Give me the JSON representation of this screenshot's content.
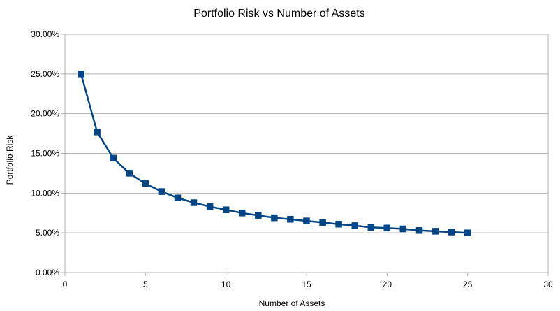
{
  "chart_data": {
    "type": "line",
    "title": "Portfolio Risk vs Number of Assets",
    "xlabel": "Number of Assets",
    "ylabel": "Portfolio Risk",
    "xlim": [
      0,
      30
    ],
    "ylim": [
      0,
      0.3
    ],
    "x_ticks": [
      0,
      5,
      10,
      15,
      20,
      25,
      30
    ],
    "x_tick_labels": [
      "0",
      "5",
      "10",
      "15",
      "20",
      "25",
      "30"
    ],
    "y_ticks": [
      0,
      0.05,
      0.1,
      0.15,
      0.2,
      0.25,
      0.3
    ],
    "y_tick_labels": [
      "0.00%",
      "5.00%",
      "10.00%",
      "15.00%",
      "20.00%",
      "25.00%",
      "30.00%"
    ],
    "grid": "horizontal",
    "legend": "none",
    "marker": "square",
    "series": [
      {
        "color": "#004586",
        "x": [
          1,
          2,
          3,
          4,
          5,
          6,
          7,
          8,
          9,
          10,
          11,
          12,
          13,
          14,
          15,
          16,
          17,
          18,
          19,
          20,
          21,
          22,
          23,
          24,
          25
        ],
        "y": [
          0.25,
          0.177,
          0.144,
          0.125,
          0.112,
          0.102,
          0.094,
          0.088,
          0.083,
          0.079,
          0.075,
          0.072,
          0.069,
          0.067,
          0.065,
          0.063,
          0.061,
          0.059,
          0.057,
          0.056,
          0.055,
          0.053,
          0.052,
          0.051,
          0.05
        ]
      }
    ]
  }
}
